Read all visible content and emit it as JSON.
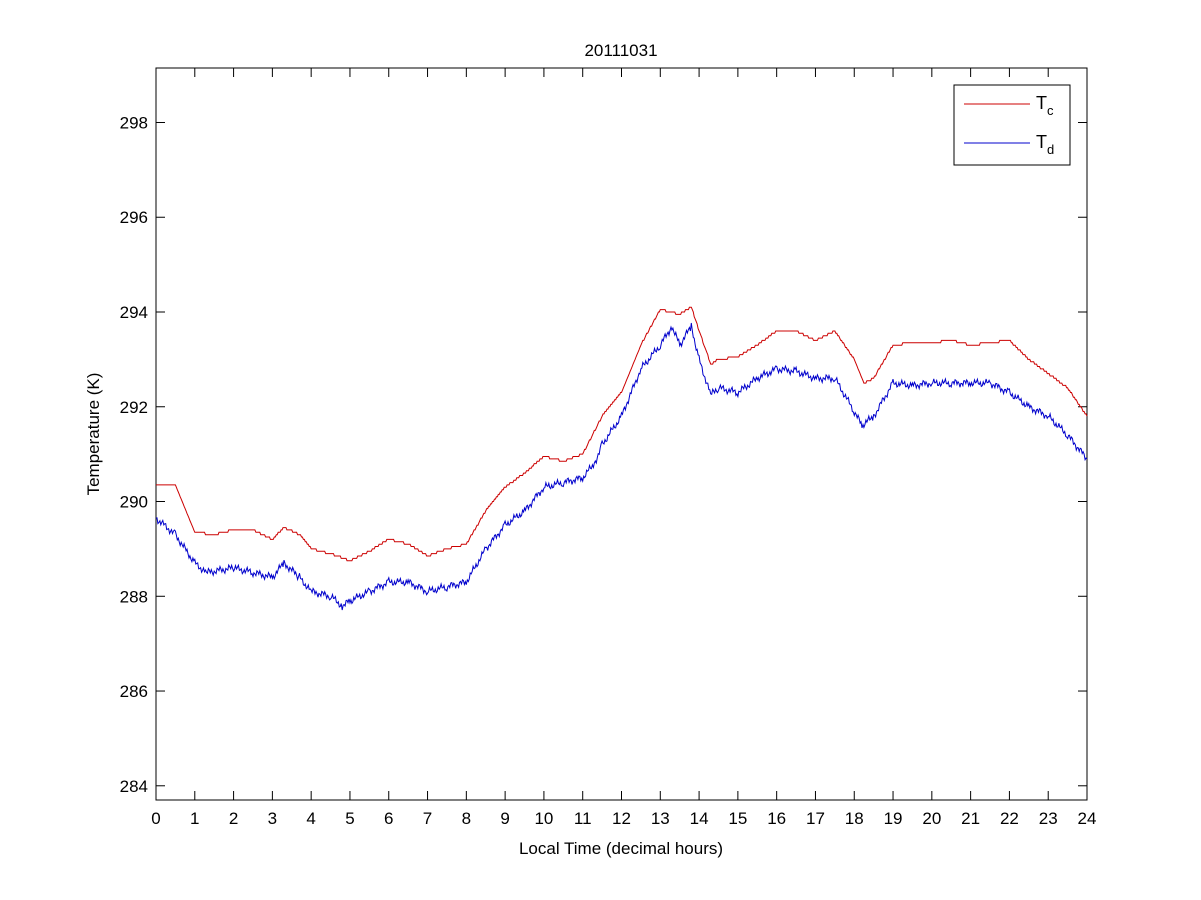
{
  "chart_data": {
    "type": "line",
    "title": "20111031",
    "xlabel": "Local Time (decimal hours)",
    "ylabel": "Temperature (K)",
    "xlim": [
      0,
      24
    ],
    "ylim": [
      283.7,
      299.15
    ],
    "xticks": [
      0,
      1,
      2,
      3,
      4,
      5,
      6,
      7,
      8,
      9,
      10,
      11,
      12,
      13,
      14,
      15,
      16,
      17,
      18,
      19,
      20,
      21,
      22,
      23,
      24
    ],
    "yticks": [
      284,
      286,
      288,
      290,
      292,
      294,
      296,
      298
    ],
    "grid": false,
    "legend": {
      "placement": "top-right",
      "entries": [
        {
          "label": "T",
          "sub": "c"
        },
        {
          "label": "T",
          "sub": "d"
        }
      ]
    },
    "series": [
      {
        "name": "Tc",
        "color": "#cc0000",
        "x": [
          0,
          0.5,
          1,
          1.5,
          2,
          2.5,
          3,
          3.3,
          3.7,
          4,
          4.5,
          5,
          5.5,
          6,
          6.5,
          7,
          7.5,
          8,
          8.5,
          9,
          9.5,
          10,
          10.5,
          11,
          11.5,
          12,
          12.5,
          13,
          13.5,
          13.8,
          14,
          14.3,
          14.5,
          15,
          15.5,
          16,
          16.5,
          17,
          17.5,
          18,
          18.25,
          18.5,
          19,
          19.5,
          20,
          20.5,
          21,
          21.5,
          22,
          22.5,
          23,
          23.5,
          24
        ],
        "y": [
          290.35,
          290.35,
          289.35,
          289.3,
          289.4,
          289.4,
          289.2,
          289.45,
          289.3,
          289.0,
          288.9,
          288.75,
          288.95,
          289.2,
          289.1,
          288.85,
          289.0,
          289.1,
          289.8,
          290.3,
          290.6,
          290.95,
          290.85,
          291.0,
          291.8,
          292.3,
          293.3,
          294.05,
          293.95,
          294.1,
          293.6,
          292.9,
          293.0,
          293.05,
          293.3,
          293.6,
          293.6,
          293.4,
          293.6,
          293.0,
          292.5,
          292.6,
          293.3,
          293.35,
          293.35,
          293.4,
          293.3,
          293.35,
          293.4,
          293.0,
          292.7,
          292.4,
          291.8
        ]
      },
      {
        "name": "Td",
        "color": "#0000cc",
        "x": [
          0,
          0.5,
          1,
          1.3,
          2,
          2.5,
          3,
          3.3,
          3.7,
          4,
          4.5,
          4.8,
          5,
          5.5,
          6,
          6.5,
          7,
          7.5,
          8,
          8.5,
          9,
          9.5,
          10,
          10.5,
          11,
          11.3,
          11.5,
          12,
          12.5,
          13,
          13.3,
          13.5,
          13.8,
          14,
          14.3,
          14.5,
          15,
          15.5,
          16,
          16.5,
          17,
          17.5,
          18,
          18.2,
          18.5,
          19,
          19.5,
          20,
          20.5,
          21,
          21.5,
          22,
          22.5,
          23,
          23.5,
          24
        ],
        "y": [
          289.65,
          289.3,
          288.7,
          288.5,
          288.6,
          288.5,
          288.4,
          288.7,
          288.4,
          288.1,
          288.0,
          287.8,
          287.9,
          288.1,
          288.3,
          288.3,
          288.1,
          288.2,
          288.3,
          289.0,
          289.5,
          289.8,
          290.3,
          290.4,
          290.5,
          290.8,
          291.2,
          291.8,
          292.8,
          293.3,
          293.7,
          293.3,
          293.7,
          293.0,
          292.25,
          292.4,
          292.3,
          292.6,
          292.8,
          292.75,
          292.6,
          292.6,
          291.9,
          291.6,
          291.8,
          292.5,
          292.45,
          292.5,
          292.5,
          292.5,
          292.5,
          292.3,
          292.0,
          291.8,
          291.4,
          290.9
        ]
      }
    ]
  }
}
